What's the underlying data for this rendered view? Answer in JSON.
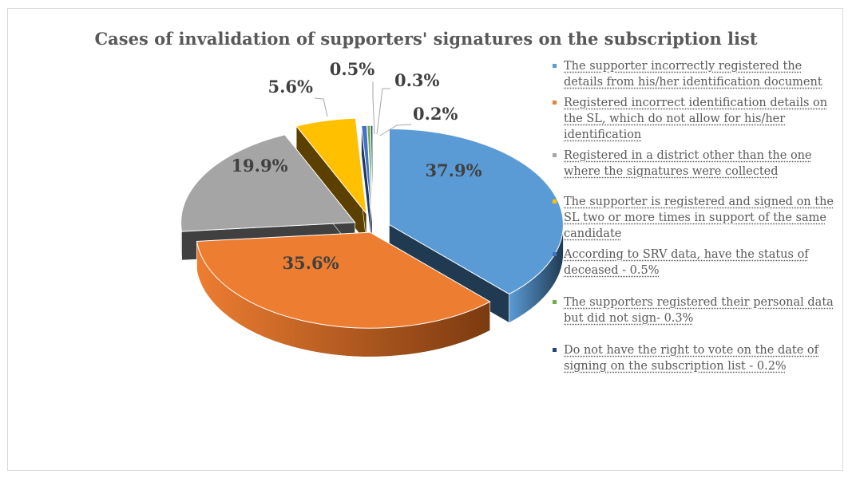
{
  "chart_data": {
    "type": "pie",
    "variant": "3d-exploded",
    "title": "Cases of invalidation of supporters' signatures on the subscription list",
    "legend_position": "right",
    "slices": [
      {
        "label": "The supporter incorrectly registered the details from his/her identification document",
        "value": 37.9,
        "display": "37.9%",
        "color": "#5b9bd5",
        "side": "#203a52"
      },
      {
        "label": "Registered incorrect identification details on the SL, which do not allow for his/her identification",
        "value": 35.6,
        "display": "35.6%",
        "color": "#ed7d31",
        "side": "#7b3a10"
      },
      {
        "label": "Registered in a district other than the one where the signatures were collected",
        "value": 19.9,
        "display": "19.9%",
        "color": "#a5a5a5",
        "side": "#404040"
      },
      {
        "label": "The supporter is registered and signed on the SL two or more times in support of the same candidate",
        "value": 5.6,
        "display": "5.6%",
        "color": "#ffc000",
        "side": "#5c4000"
      },
      {
        "label": "According to SRV data, have the status of deceased - 0.5%",
        "value": 0.5,
        "display": "0.5%",
        "color": "#4472c4",
        "side": "#1f3864"
      },
      {
        "label": "The supporters registered their personal data but did not sign- 0.3%",
        "value": 0.3,
        "display": "0.3%",
        "color": "#70ad47",
        "side": "#375623"
      },
      {
        "label": "Do not have the right to vote on the date of signing on the subscription list - 0.2%",
        "value": 0.2,
        "display": "0.2%",
        "color": "#264478",
        "side": "#132238"
      }
    ]
  }
}
